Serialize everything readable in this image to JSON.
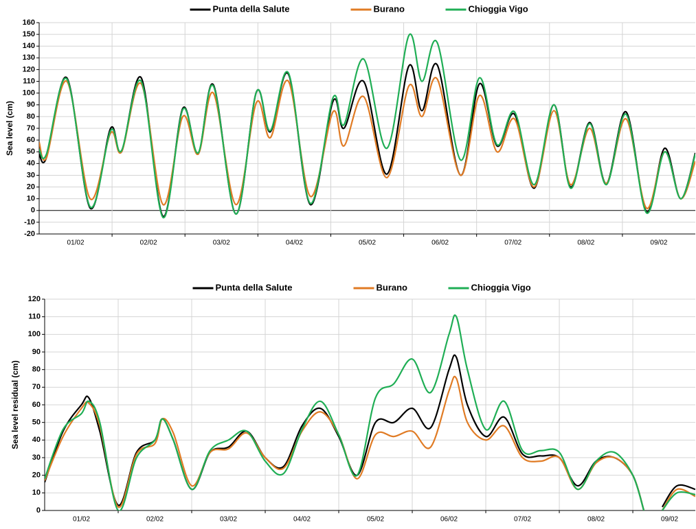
{
  "chart_data": [
    {
      "type": "line",
      "y_label": "Sea level (cm)",
      "x": [
        0,
        0.1,
        0.38,
        0.7,
        0.98,
        1.13,
        1.4,
        1.7,
        1.97,
        2.18,
        2.39,
        2.7,
        2.98,
        3.17,
        3.42,
        3.72,
        4.03,
        4.18,
        4.45,
        4.77,
        5.07,
        5.25,
        5.46,
        5.78,
        6.04,
        6.28,
        6.52,
        6.79,
        7.06,
        7.29,
        7.55,
        7.78,
        8.05,
        8.33,
        8.58,
        8.8,
        9.0
      ],
      "xlim": [
        0,
        9
      ],
      "xticks": [
        {
          "value": 0.5,
          "label": "01/02"
        },
        {
          "value": 1.5,
          "label": "02/02"
        },
        {
          "value": 2.5,
          "label": "03/02"
        },
        {
          "value": 3.5,
          "label": "04/02"
        },
        {
          "value": 4.5,
          "label": "05/02"
        },
        {
          "value": 5.5,
          "label": "06/02"
        },
        {
          "value": 6.5,
          "label": "07/02"
        },
        {
          "value": 7.5,
          "label": "08/02"
        },
        {
          "value": 8.5,
          "label": "09/02"
        }
      ],
      "ylim": [
        -20,
        160
      ],
      "yticks": [
        -20,
        -10,
        0,
        10,
        20,
        30,
        40,
        50,
        60,
        70,
        80,
        90,
        100,
        110,
        120,
        130,
        140,
        150,
        160
      ],
      "grid": true,
      "legend": "top",
      "series": [
        {
          "name": "Punta della Salute",
          "color": "#000000",
          "values": [
            48,
            45,
            113,
            2,
            70,
            50,
            113,
            -5,
            87,
            48,
            107,
            -3,
            101,
            67,
            116,
            5,
            93,
            70,
            110,
            31,
            123,
            85,
            124,
            30,
            108,
            55,
            82,
            19,
            90,
            20,
            75,
            23,
            84,
            -1,
            53,
            10,
            49
          ]
        },
        {
          "name": "Burano",
          "color": "#e07b24",
          "values": [
            58,
            45,
            110,
            10,
            66,
            50,
            108,
            5,
            80,
            48,
            100,
            5,
            92,
            62,
            110,
            12,
            84,
            55,
            97,
            28,
            106,
            80,
            112,
            30,
            98,
            50,
            78,
            20,
            85,
            22,
            70,
            23,
            78,
            2,
            50,
            10,
            42
          ]
        },
        {
          "name": "Chioggia Vigo",
          "color": "#1fae55",
          "values": [
            52,
            48,
            112,
            3,
            68,
            51,
            110,
            -6,
            86,
            49,
            106,
            -3,
            101,
            68,
            117,
            6,
            96,
            73,
            129,
            53,
            149,
            110,
            143,
            43,
            113,
            56,
            84,
            22,
            90,
            19,
            74,
            22,
            82,
            -2,
            50,
            10,
            48
          ]
        }
      ]
    },
    {
      "type": "line",
      "y_label": "Sea level residual (cm)",
      "x": [
        0,
        0.25,
        0.5,
        0.6,
        0.75,
        1.0,
        1.25,
        1.5,
        1.6,
        1.75,
        2.0,
        2.25,
        2.5,
        2.75,
        3.0,
        3.25,
        3.5,
        3.75,
        4.0,
        4.25,
        4.5,
        4.75,
        5.0,
        5.25,
        5.5,
        5.6,
        5.75,
        6.0,
        6.25,
        6.5,
        6.75,
        7.0,
        7.25,
        7.5,
        7.75,
        8.0,
        8.15,
        8.3,
        8.4,
        8.6,
        8.85
      ],
      "xlim": [
        0,
        8.85
      ],
      "xticks": [
        {
          "value": 0.5,
          "label": "01/02"
        },
        {
          "value": 1.5,
          "label": "02/02"
        },
        {
          "value": 2.5,
          "label": "03/02"
        },
        {
          "value": 3.5,
          "label": "04/02"
        },
        {
          "value": 4.5,
          "label": "05/02"
        },
        {
          "value": 5.5,
          "label": "06/02"
        },
        {
          "value": 6.5,
          "label": "07/02"
        },
        {
          "value": 7.5,
          "label": "08/02"
        },
        {
          "value": 8.5,
          "label": "09/02"
        }
      ],
      "ylim": [
        0,
        120
      ],
      "yticks": [
        0,
        10,
        20,
        30,
        40,
        50,
        60,
        70,
        80,
        90,
        100,
        110,
        120
      ],
      "grid": true,
      "legend": "top",
      "series": [
        {
          "name": "Punta della Salute",
          "color": "#000000",
          "values": [
            16,
            45,
            60,
            64,
            45,
            3,
            33,
            40,
            52,
            40,
            12,
            33,
            36,
            45,
            30,
            25,
            48,
            58,
            42,
            20,
            50,
            50,
            58,
            47,
            80,
            87,
            60,
            42,
            53,
            32,
            31,
            30,
            14,
            28,
            30,
            20,
            0,
            null,
            2,
            14,
            12
          ]
        },
        {
          "name": "Burano",
          "color": "#e07b24",
          "values": [
            17,
            42,
            58,
            61,
            48,
            2,
            32,
            38,
            52,
            44,
            14,
            33,
            35,
            44,
            30,
            24,
            45,
            56,
            43,
            18,
            43,
            42,
            45,
            36,
            68,
            75,
            50,
            40,
            48,
            30,
            28,
            30,
            12,
            27,
            30,
            20,
            0,
            null,
            0,
            12,
            8
          ]
        },
        {
          "name": "Chioggia Vigo",
          "color": "#1fae55",
          "values": [
            18,
            46,
            55,
            62,
            50,
            0,
            30,
            40,
            52,
            40,
            12,
            34,
            40,
            45,
            28,
            21,
            46,
            62,
            43,
            20,
            64,
            72,
            86,
            67,
            100,
            110,
            80,
            46,
            62,
            34,
            34,
            33,
            12,
            28,
            33,
            20,
            0,
            null,
            0,
            10,
            9
          ]
        }
      ]
    }
  ]
}
